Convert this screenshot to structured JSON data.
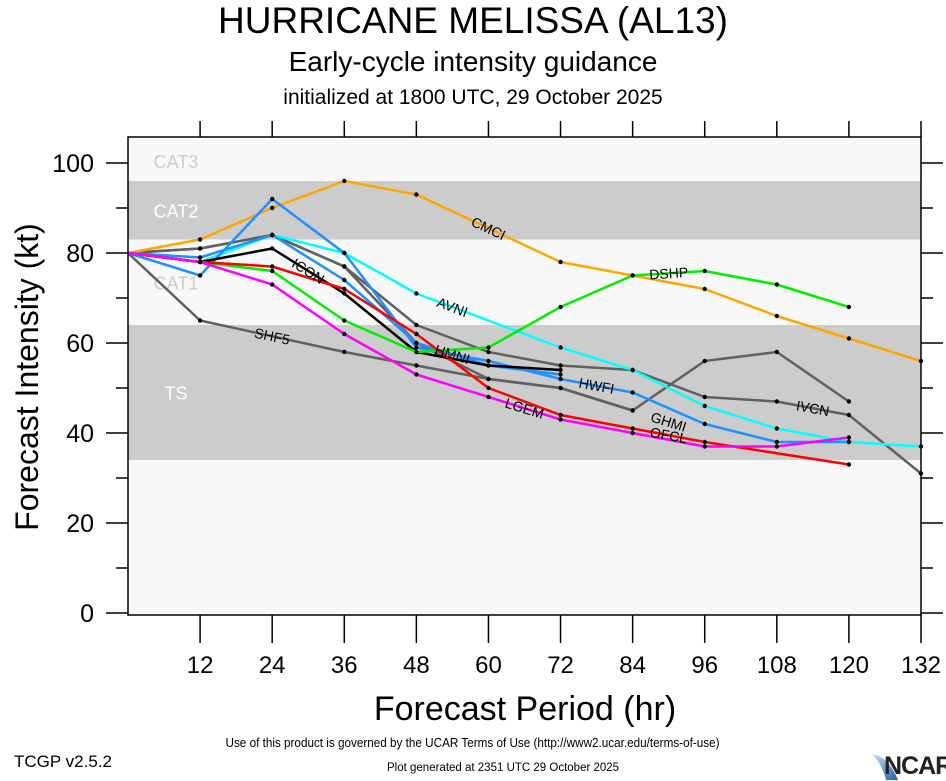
{
  "header": {
    "title": "HURRICANE MELISSA (AL13)",
    "subtitle": "Early-cycle intensity guidance",
    "init": "initialized at 1800 UTC, 29 October 2025"
  },
  "footer": {
    "terms": "Use of this product is governed by the UCAR Terms of Use (http://www2.ucar.edu/terms-of-use)",
    "version": "TCGP v2.5.2",
    "generated": "Plot generated at 2351 UTC   29 October 2025",
    "logo": "NCAR"
  },
  "chart_data": {
    "type": "line",
    "title": "HURRICANE MELISSA (AL13)",
    "subtitle": "Early-cycle intensity guidance",
    "xlabel": "Forecast Period (hr)",
    "ylabel": "Forecast Intensity (kt)",
    "xlim": [
      0,
      132
    ],
    "ylim": [
      0,
      105
    ],
    "xticks": [
      12,
      24,
      36,
      48,
      60,
      72,
      84,
      96,
      108,
      120,
      132
    ],
    "yticks": [
      0,
      20,
      40,
      60,
      80,
      100
    ],
    "bands": [
      {
        "label": "TS",
        "from": 34,
        "to": 64,
        "color": "#cccccc"
      },
      {
        "label": "CAT1",
        "from": 64,
        "to": 83,
        "color": "#f8f8f8"
      },
      {
        "label": "CAT2",
        "from": 83,
        "to": 96,
        "color": "#cccccc"
      },
      {
        "label": "CAT3",
        "from": 96,
        "to": 105,
        "color": "#f8f8f8"
      }
    ],
    "series": [
      {
        "name": "SHF5",
        "color": "#606060",
        "x": [
          0,
          12,
          36,
          48,
          60,
          72,
          84,
          96,
          108,
          120
        ],
        "y": [
          80,
          65,
          58,
          55,
          52,
          50,
          45,
          56,
          58,
          47
        ],
        "label_x": 24
      },
      {
        "name": "IVCN",
        "color": "#606060",
        "x": [
          0,
          12,
          24,
          36,
          48,
          60,
          72,
          84,
          96,
          108,
          120,
          132
        ],
        "y": [
          80,
          81,
          84,
          77,
          64,
          58,
          55,
          54,
          48,
          47,
          44,
          31
        ],
        "label_x": 114
      },
      {
        "name": "GHMI",
        "color": "#606060",
        "x": [
          0,
          12,
          24,
          36,
          48,
          60,
          72,
          84
        ],
        "y": [
          80,
          81,
          84,
          77,
          60,
          52,
          50,
          45
        ],
        "label_x": 90
      },
      {
        "name": "CMCI",
        "color": "#ffa500",
        "x": [
          0,
          12,
          24,
          36,
          48,
          72,
          84,
          96,
          108,
          120,
          132
        ],
        "y": [
          80,
          83,
          90,
          96,
          93,
          78,
          75,
          72,
          66,
          61,
          56
        ],
        "label_x": 60
      },
      {
        "name": "AVNI",
        "color": "#00ffff",
        "x": [
          0,
          12,
          24,
          36,
          48,
          72,
          84,
          96,
          108,
          120,
          132
        ],
        "y": [
          80,
          78,
          84,
          80,
          71,
          59,
          54,
          46,
          41,
          38,
          37
        ],
        "label_x": 54
      },
      {
        "name": "HMNI",
        "color": "#1e90ff",
        "x": [
          0,
          12,
          24,
          36,
          48,
          60,
          72
        ],
        "y": [
          80,
          79,
          84,
          74,
          60,
          55,
          53
        ],
        "label_x": 54
      },
      {
        "name": "HWFI",
        "color": "#1e90ff",
        "x": [
          0,
          12,
          24,
          36,
          48,
          60,
          72,
          84,
          96,
          108,
          120
        ],
        "y": [
          80,
          75,
          92,
          80,
          59,
          56,
          52,
          49,
          42,
          38,
          38
        ],
        "label_x": 78
      },
      {
        "name": "ICON",
        "color": "#000000",
        "x": [
          0,
          12,
          24,
          36,
          48,
          60,
          72
        ],
        "y": [
          80,
          78,
          81,
          71,
          58,
          55,
          54
        ],
        "label_x": 30
      },
      {
        "name": "DSHP",
        "color": "#00ee00",
        "x": [
          0,
          12,
          24,
          36,
          48,
          60,
          72,
          84,
          96,
          108,
          120
        ],
        "y": [
          80,
          78,
          76,
          65,
          58,
          59,
          68,
          75,
          76,
          73,
          68
        ],
        "label_x": 90
      },
      {
        "name": "OFCL",
        "color": "#ff0000",
        "x": [
          0,
          12,
          24,
          36,
          48,
          60,
          72,
          84,
          96,
          120
        ],
        "y": [
          80,
          78,
          77,
          72,
          62,
          50,
          44,
          41,
          38,
          33
        ],
        "label_x": 90
      },
      {
        "name": "LGEM",
        "color": "#ff00ff",
        "x": [
          0,
          12,
          24,
          36,
          48,
          60,
          72,
          84,
          96,
          108,
          120
        ],
        "y": [
          80,
          78,
          73,
          62,
          53,
          48,
          43,
          40,
          37,
          37,
          39
        ],
        "label_x": 66
      }
    ]
  }
}
